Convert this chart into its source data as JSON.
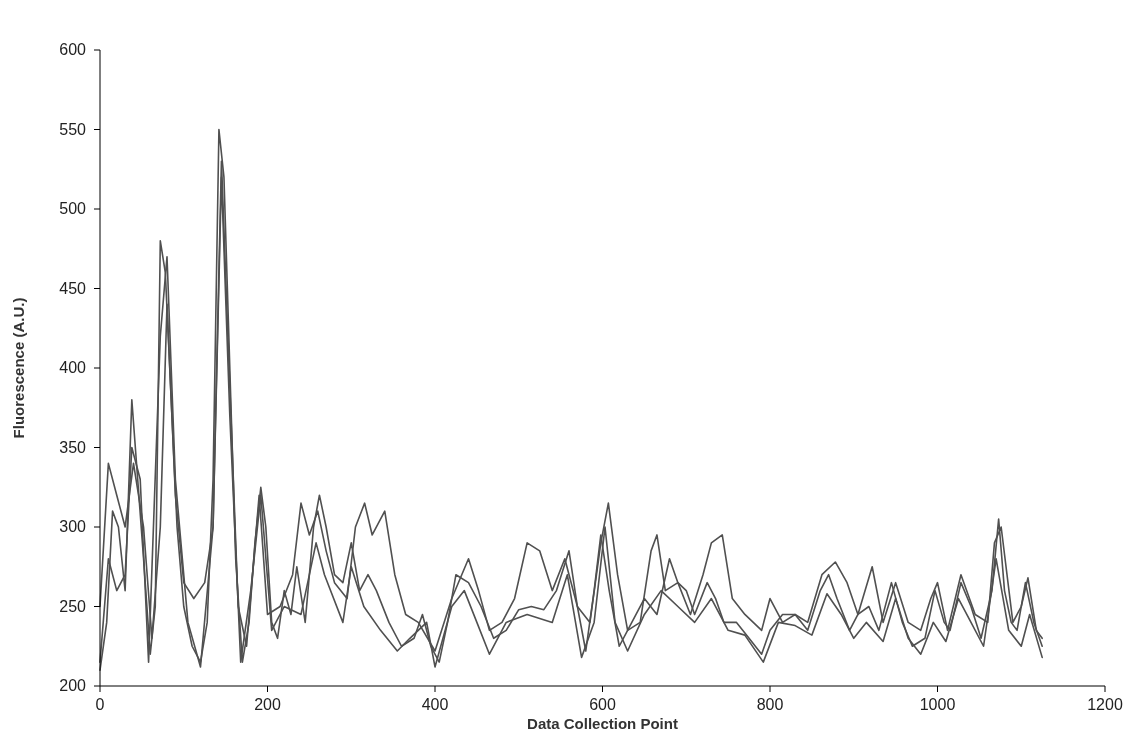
{
  "chart_data": {
    "type": "line",
    "xlabel": "Data Collection Point",
    "ylabel": "Fluorescence (A.U.)",
    "xlim": [
      0,
      1200
    ],
    "xticks": [
      0,
      200,
      400,
      600,
      800,
      1000,
      1200
    ],
    "ylim": [
      200,
      600
    ],
    "yticks": [
      200,
      250,
      300,
      350,
      400,
      450,
      500,
      550,
      600
    ],
    "grid": false,
    "marker": "none",
    "line_style": "solid",
    "series": [
      {
        "color": "#505050",
        "x": [
          0,
          8,
          15,
          22,
          30,
          38,
          45,
          52,
          60,
          66,
          72,
          78,
          85,
          92,
          100,
          110,
          120,
          128,
          135,
          142,
          148,
          155,
          162,
          170,
          178,
          185,
          192,
          198,
          205,
          212,
          220,
          228,
          235,
          245,
          255,
          262,
          270,
          280,
          290,
          300,
          310,
          320,
          330,
          345,
          360,
          375,
          385,
          395,
          405,
          415,
          425,
          440,
          455,
          470,
          485,
          500,
          515,
          530,
          545,
          560,
          570,
          580,
          590,
          598,
          608,
          620,
          635,
          650,
          665,
          680,
          690,
          700,
          710,
          725,
          735,
          745,
          760,
          775,
          790,
          800,
          815,
          830,
          845,
          860,
          870,
          880,
          895,
          905,
          918,
          930,
          945,
          958,
          970,
          985,
          997,
          1008,
          1015,
          1028,
          1040,
          1052,
          1065,
          1073,
          1080,
          1088,
          1095,
          1105,
          1115,
          1125
        ],
        "values": [
          210,
          240,
          310,
          300,
          260,
          380,
          330,
          280,
          220,
          250,
          480,
          460,
          380,
          300,
          250,
          225,
          215,
          240,
          330,
          550,
          520,
          400,
          280,
          215,
          240,
          290,
          325,
          300,
          240,
          230,
          260,
          245,
          275,
          240,
          300,
          320,
          300,
          270,
          265,
          290,
          260,
          270,
          260,
          240,
          225,
          230,
          245,
          225,
          215,
          240,
          270,
          265,
          250,
          230,
          235,
          248,
          250,
          248,
          260,
          285,
          250,
          222,
          260,
          295,
          260,
          225,
          240,
          255,
          245,
          280,
          265,
          260,
          245,
          265,
          255,
          240,
          240,
          230,
          220,
          235,
          245,
          245,
          235,
          260,
          270,
          255,
          235,
          245,
          250,
          235,
          265,
          240,
          225,
          230,
          260,
          240,
          235,
          265,
          250,
          230,
          260,
          305,
          260,
          240,
          235,
          265,
          240,
          225
        ]
      },
      {
        "color": "#505050",
        "x": [
          0,
          10,
          20,
          30,
          40,
          52,
          62,
          72,
          80,
          90,
          100,
          112,
          125,
          135,
          145,
          152,
          165,
          175,
          190,
          200,
          215,
          230,
          240,
          250,
          260,
          270,
          280,
          295,
          305,
          316,
          325,
          340,
          352,
          365,
          380,
          400,
          420,
          440,
          452,
          465,
          480,
          495,
          510,
          525,
          540,
          555,
          570,
          585,
          598,
          607,
          618,
          630,
          645,
          658,
          665,
          675,
          690,
          705,
          720,
          730,
          743,
          755,
          770,
          790,
          800,
          815,
          830,
          845,
          862,
          878,
          892,
          905,
          922,
          935,
          950,
          965,
          980,
          992,
          1000,
          1012,
          1028,
          1045,
          1060,
          1068,
          1076,
          1090,
          1100,
          1108,
          1118,
          1125
        ],
        "values": [
          250,
          340,
          320,
          300,
          340,
          300,
          230,
          300,
          440,
          320,
          265,
          255,
          265,
          300,
          530,
          430,
          250,
          225,
          320,
          245,
          250,
          270,
          315,
          295,
          310,
          285,
          265,
          255,
          300,
          315,
          295,
          310,
          270,
          245,
          240,
          222,
          255,
          280,
          260,
          235,
          240,
          255,
          290,
          285,
          260,
          280,
          250,
          240,
          290,
          315,
          270,
          235,
          240,
          285,
          295,
          260,
          265,
          245,
          270,
          290,
          295,
          255,
          245,
          235,
          255,
          240,
          245,
          240,
          270,
          278,
          265,
          245,
          275,
          240,
          265,
          240,
          235,
          255,
          265,
          235,
          270,
          245,
          240,
          290,
          300,
          240,
          250,
          268,
          235,
          230
        ]
      },
      {
        "color": "#505050",
        "x": [
          0,
          10,
          20,
          30,
          38,
          48,
          58,
          72,
          80,
          90,
          105,
          120,
          135,
          145,
          155,
          168,
          180,
          192,
          205,
          220,
          240,
          258,
          268,
          290,
          300,
          315,
          335,
          355,
          370,
          390,
          400,
          420,
          435,
          450,
          465,
          485,
          510,
          540,
          558,
          575,
          590,
          603,
          615,
          630,
          650,
          670,
          690,
          710,
          730,
          750,
          770,
          792,
          810,
          830,
          850,
          868,
          885,
          900,
          915,
          935,
          950,
          965,
          980,
          995,
          1010,
          1025,
          1040,
          1055,
          1070,
          1085,
          1100,
          1110,
          1125
        ],
        "values": [
          215,
          280,
          260,
          270,
          350,
          330,
          215,
          420,
          470,
          330,
          240,
          212,
          300,
          520,
          370,
          215,
          260,
          320,
          235,
          250,
          245,
          290,
          270,
          240,
          275,
          250,
          235,
          222,
          230,
          240,
          212,
          250,
          260,
          240,
          220,
          240,
          245,
          240,
          270,
          218,
          240,
          300,
          240,
          222,
          245,
          260,
          250,
          240,
          255,
          235,
          232,
          215,
          240,
          238,
          232,
          258,
          245,
          230,
          240,
          228,
          255,
          230,
          220,
          240,
          228,
          255,
          240,
          225,
          280,
          235,
          225,
          245,
          218
        ]
      }
    ]
  }
}
